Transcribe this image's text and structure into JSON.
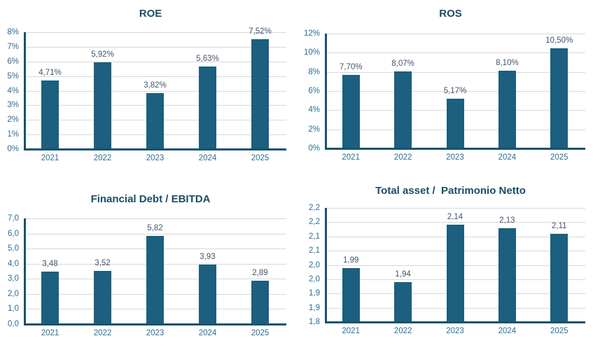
{
  "colors": {
    "bar": "#1C5F7E",
    "axis": "#17536E",
    "gridline": "#D9D9D9",
    "tick_label": "#2B6E93",
    "data_label": "#44546A",
    "title": "#1C4D66",
    "background": "#FFFFFF"
  },
  "chart_data": [
    {
      "type": "bar",
      "title": "ROE",
      "categories": [
        "2021",
        "2022",
        "2023",
        "2024",
        "2025"
      ],
      "values": [
        4.71,
        5.92,
        3.82,
        5.63,
        7.52
      ],
      "value_labels": [
        "4,71%",
        "5,92%",
        "3,82%",
        "5,63%",
        "7,52%"
      ],
      "ylim": [
        0,
        8
      ],
      "yticks": [
        "0%",
        "1%",
        "2%",
        "3%",
        "4%",
        "5%",
        "6%",
        "7%",
        "8%"
      ],
      "xlabel": "",
      "ylabel": "",
      "grid": true,
      "legend": false
    },
    {
      "type": "bar",
      "title": "ROS",
      "categories": [
        "2021",
        "2022",
        "2023",
        "2024",
        "2025"
      ],
      "values": [
        7.7,
        8.07,
        5.17,
        8.1,
        10.5
      ],
      "value_labels": [
        "7,70%",
        "8,07%",
        "5,17%",
        "8,10%",
        "10,50%"
      ],
      "ylim": [
        0,
        12
      ],
      "yticks": [
        "0%",
        "2%",
        "4%",
        "6%",
        "8%",
        "10%",
        "12%"
      ],
      "xlabel": "",
      "ylabel": "",
      "grid": true,
      "legend": false
    },
    {
      "type": "bar",
      "title": "Financial Debt / EBITDA",
      "categories": [
        "2021",
        "2022",
        "2023",
        "2024",
        "2025"
      ],
      "values": [
        3.48,
        3.52,
        5.82,
        3.93,
        2.89
      ],
      "value_labels": [
        "3,48",
        "3,52",
        "5,82",
        "3,93",
        "2,89"
      ],
      "ylim": [
        0,
        7
      ],
      "yticks": [
        "0,0",
        "1,0",
        "2,0",
        "3,0",
        "4,0",
        "5,0",
        "6,0",
        "7,0"
      ],
      "xlabel": "",
      "ylabel": "",
      "grid": true,
      "legend": false
    },
    {
      "type": "bar",
      "title": "Total asset /  Patrimonio Netto",
      "categories": [
        "2021",
        "2022",
        "2023",
        "2024",
        "2025"
      ],
      "values": [
        1.99,
        1.94,
        2.14,
        2.13,
        2.11
      ],
      "value_labels": [
        "1,99",
        "1,94",
        "2,14",
        "2,13",
        "2,11"
      ],
      "ylim": [
        1.8,
        2.2
      ],
      "yticks": [
        "1,8",
        "1,9",
        "1,9",
        "2,0",
        "2,0",
        "2,1",
        "2,1",
        "2,2",
        "2,2"
      ],
      "xlabel": "",
      "ylabel": "",
      "grid": true,
      "legend": false
    }
  ]
}
